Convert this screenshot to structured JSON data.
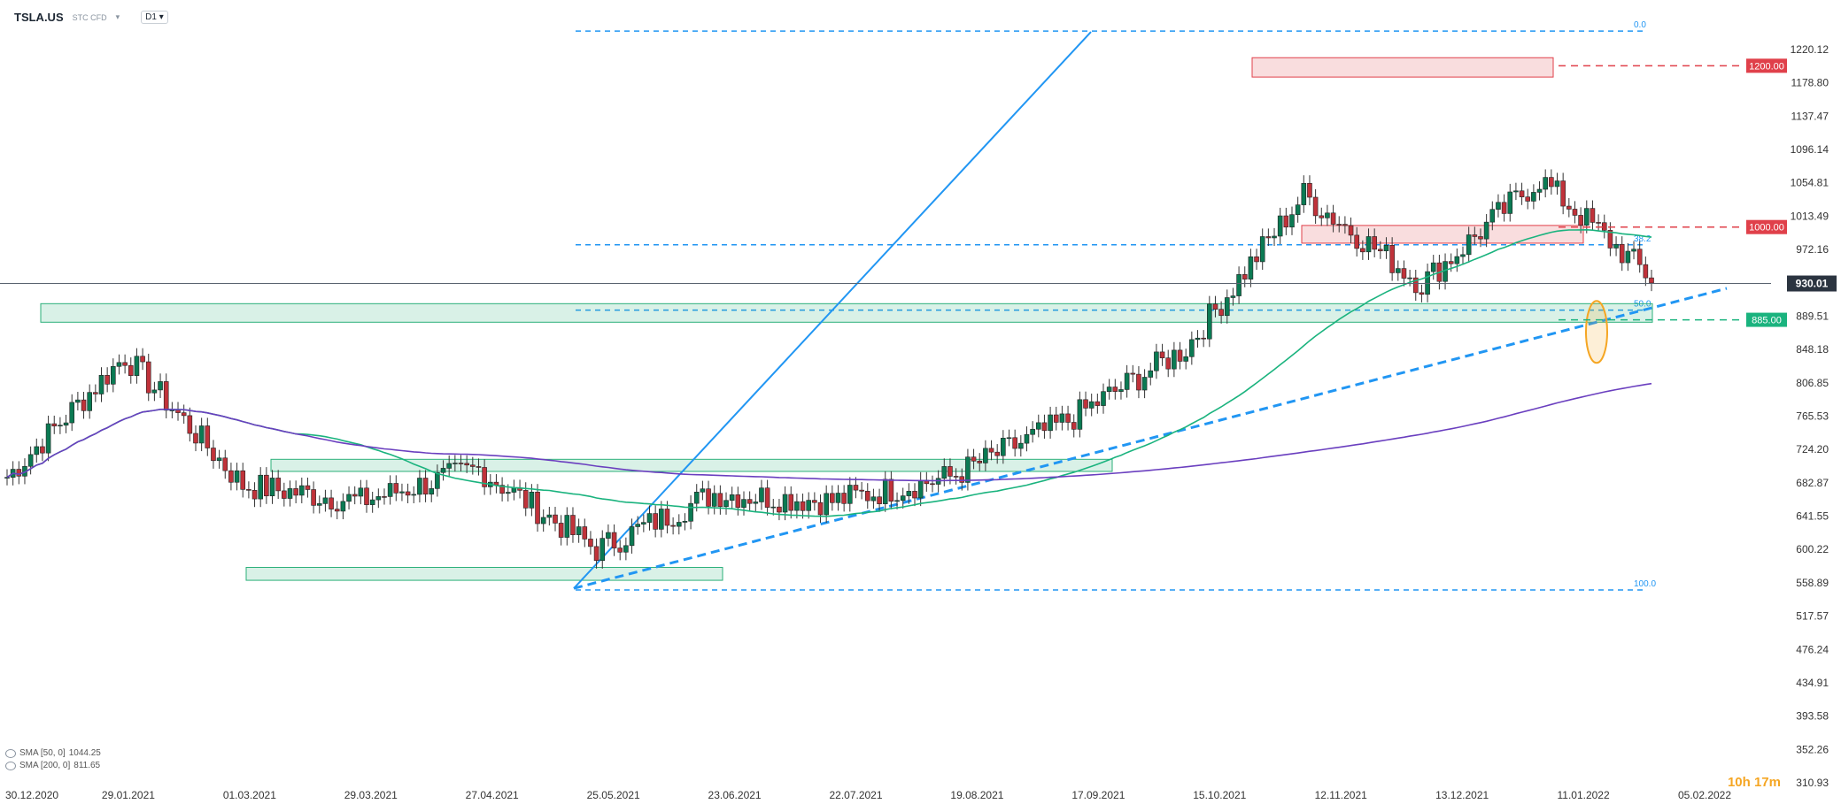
{
  "header": {
    "symbol": "TSLA.US",
    "instrument": "STC CFD",
    "timeframe": "D1"
  },
  "timer": "10h 17m",
  "indicators": [
    {
      "label": "SMA [50, 0]",
      "value": "1044.25",
      "color": "#1ab37e"
    },
    {
      "label": "SMA [200, 0]",
      "value": "811.65",
      "color": "#6a3fbf"
    }
  ],
  "colors": {
    "up": "#0b7a53",
    "down": "#c0323a",
    "fib": "#2196f3",
    "zone_green": "#2bb07a",
    "zone_red": "#e0404a",
    "highlight": "#f5a623"
  },
  "chart_data": {
    "type": "candlestick",
    "x_labels": [
      "30.12.2020",
      "29.01.2021",
      "01.03.2021",
      "29.03.2021",
      "27.04.2021",
      "25.05.2021",
      "23.06.2021",
      "22.07.2021",
      "19.08.2021",
      "17.09.2021",
      "15.10.2021",
      "12.11.2021",
      "13.12.2021",
      "11.01.2022",
      "05.02.2022"
    ],
    "y_ticks": [
      1220.12,
      1178.8,
      1137.47,
      1096.14,
      1054.81,
      1013.49,
      972.16,
      930.01,
      889.51,
      848.18,
      806.85,
      765.53,
      724.2,
      682.87,
      641.55,
      600.22,
      558.89,
      517.57,
      476.24,
      434.91,
      393.58,
      352.26,
      310.93
    ],
    "ylim": [
      310.93,
      1240
    ],
    "last_price": 930.01,
    "price_tags": [
      {
        "label": "1200.00",
        "value": 1200.0,
        "color": "#e0404a"
      },
      {
        "label": "1000.00",
        "value": 1000.0,
        "color": "#e0404a"
      },
      {
        "label": "885.00",
        "value": 885.0,
        "color": "#1ab37e"
      }
    ],
    "fibonacci": [
      {
        "label": "0.0",
        "value": 1243
      },
      {
        "label": "38.2",
        "value": 978
      },
      {
        "label": "50.0",
        "value": 897
      },
      {
        "label": "100.0",
        "value": 550
      }
    ],
    "key_points": [
      {
        "date": "30.12.2020",
        "close": 690
      },
      {
        "date": "29.01.2021",
        "close": 840
      },
      {
        "date": "01.03.2021",
        "close": 680
      },
      {
        "date": "29.03.2021",
        "close": 660
      },
      {
        "date": "27.04.2021",
        "close": 700
      },
      {
        "date": "25.05.2021",
        "close": 600
      },
      {
        "date": "23.06.2021",
        "close": 670
      },
      {
        "date": "22.07.2021",
        "close": 660
      },
      {
        "date": "19.08.2021",
        "close": 690
      },
      {
        "date": "17.09.2021",
        "close": 760
      },
      {
        "date": "15.10.2021",
        "close": 850
      },
      {
        "date": "12.11.2021",
        "close": 1040
      },
      {
        "date": "13.12.2021",
        "close": 930
      },
      {
        "date": "11.01.2022",
        "close": 1060
      },
      {
        "date": "05.02.2022",
        "close": 930
      }
    ]
  }
}
